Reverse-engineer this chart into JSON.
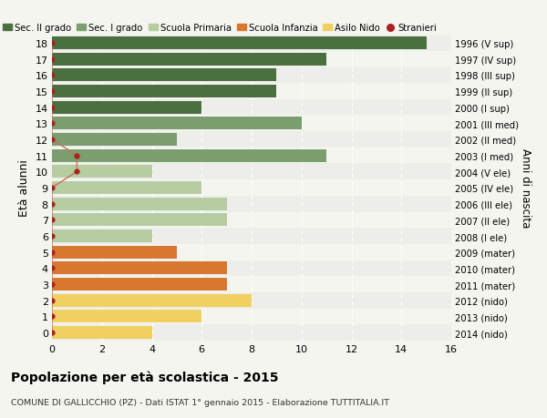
{
  "ages": [
    18,
    17,
    16,
    15,
    14,
    13,
    12,
    11,
    10,
    9,
    8,
    7,
    6,
    5,
    4,
    3,
    2,
    1,
    0
  ],
  "years": [
    "1996 (V sup)",
    "1997 (IV sup)",
    "1998 (III sup)",
    "1999 (II sup)",
    "2000 (I sup)",
    "2001 (III med)",
    "2002 (II med)",
    "2003 (I med)",
    "2004 (V ele)",
    "2005 (IV ele)",
    "2006 (III ele)",
    "2007 (II ele)",
    "2008 (I ele)",
    "2009 (mater)",
    "2010 (mater)",
    "2011 (mater)",
    "2012 (nido)",
    "2013 (nido)",
    "2014 (nido)"
  ],
  "values": [
    15,
    11,
    9,
    9,
    6,
    10,
    5,
    11,
    4,
    6,
    7,
    7,
    4,
    5,
    7,
    7,
    8,
    6,
    4
  ],
  "bar_colors": [
    "#4a7040",
    "#4a7040",
    "#4a7040",
    "#4a7040",
    "#4a7040",
    "#7a9e6e",
    "#7a9e6e",
    "#7a9e6e",
    "#b5cda0",
    "#b5cda0",
    "#b5cda0",
    "#b5cda0",
    "#b5cda0",
    "#d87830",
    "#d87830",
    "#d87830",
    "#f0d060",
    "#f0d060",
    "#f0d060"
  ],
  "stranieri_values_x": [
    0,
    0,
    0,
    0,
    0,
    0,
    0,
    1,
    1,
    0,
    0,
    0,
    0,
    0,
    0,
    0,
    0,
    0,
    0
  ],
  "legend_labels": [
    "Sec. II grado",
    "Sec. I grado",
    "Scuola Primaria",
    "Scuola Infanzia",
    "Asilo Nido",
    "Stranieri"
  ],
  "legend_colors": [
    "#4a7040",
    "#7a9e6e",
    "#b5cda0",
    "#d87830",
    "#f0d060",
    "#aa2222"
  ],
  "title": "Popolazione per età scolastica - 2015",
  "subtitle": "COMUNE DI GALLICCHIO (PZ) - Dati ISTAT 1° gennaio 2015 - Elaborazione TUTTITALIA.IT",
  "ylabel_left": "Età alunni",
  "ylabel_right": "Anni di nascita",
  "xlim": [
    0,
    16
  ],
  "bg_color": "#f5f5f0",
  "row_bg_even": "#ededea",
  "row_bg_odd": "#f5f5f0",
  "bar_height": 0.78,
  "stranieri_color": "#aa2222",
  "line_color": "#c8705a",
  "grid_color": "#ffffff"
}
